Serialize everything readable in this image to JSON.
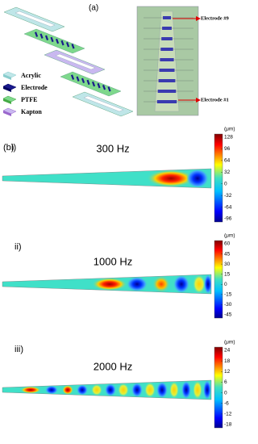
{
  "panel_a": {
    "label": "(a)",
    "legend": [
      "Acrylic",
      "Electrode",
      "PTFE",
      "Kapton"
    ],
    "callouts": [
      "Electrode #9",
      "Electrode #1"
    ]
  },
  "panel_b": {
    "label": "(b)",
    "plots": [
      {
        "label": "i)",
        "title": "300 Hz",
        "unit": "(μm)",
        "colorbar_ticks": [
          128,
          96,
          64,
          32,
          0,
          -32,
          -64,
          -96
        ]
      },
      {
        "label": "ii)",
        "title": "1000 Hz",
        "unit": "(μm)",
        "colorbar_ticks": [
          60,
          45,
          30,
          15,
          0,
          -15,
          -30,
          -45
        ]
      },
      {
        "label": "iii)",
        "title": "2000 Hz",
        "unit": "(μm)",
        "colorbar_ticks": [
          24,
          18,
          12,
          6,
          0,
          -6,
          -12,
          -18
        ]
      }
    ]
  }
}
